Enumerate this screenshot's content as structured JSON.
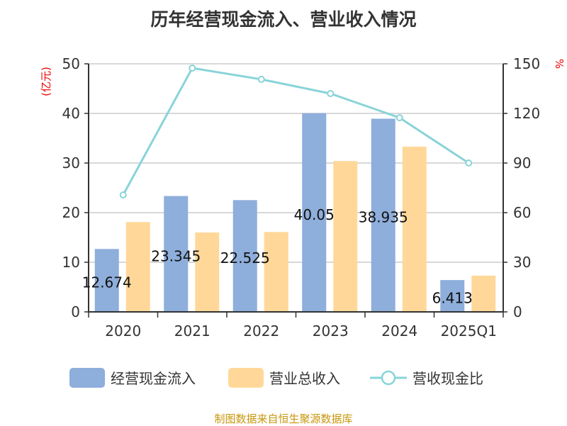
{
  "title": "历年经营现金流入、营业收入情况",
  "source": "制图数据来自恒生聚源数据库",
  "chart_data": {
    "type": "bar",
    "title": "历年经营现金流入、营业收入情况",
    "categories": [
      "2020",
      "2021",
      "2022",
      "2023",
      "2024",
      "2025Q1"
    ],
    "left_axis": {
      "label": "(亿元)",
      "ylim": [
        0,
        50
      ],
      "ticks": [
        0,
        10,
        20,
        30,
        40,
        50
      ]
    },
    "right_axis": {
      "label": "%",
      "ylim": [
        0,
        150
      ],
      "ticks": [
        0,
        30,
        60,
        90,
        120,
        150
      ]
    },
    "series": [
      {
        "name": "经营现金流入",
        "type": "bar",
        "axis": "left",
        "color": "#8eaedb",
        "values": [
          12.674,
          23.345,
          22.525,
          40.05,
          38.935,
          6.413
        ],
        "labels": [
          "12.674",
          "23.345",
          "22.525",
          "40.05",
          "38.935",
          "6.413"
        ]
      },
      {
        "name": "营业总收入",
        "type": "bar",
        "axis": "left",
        "color": "#ffd899",
        "values": [
          18.1,
          16.0,
          16.1,
          30.4,
          33.3,
          7.3
        ]
      },
      {
        "name": "营收现金比",
        "type": "line",
        "axis": "right",
        "color": "#88d4d8",
        "values": [
          70.7,
          147.4,
          140.6,
          132.0,
          117.4,
          90.0
        ]
      }
    ],
    "grid": true,
    "legend_position": "bottom"
  }
}
